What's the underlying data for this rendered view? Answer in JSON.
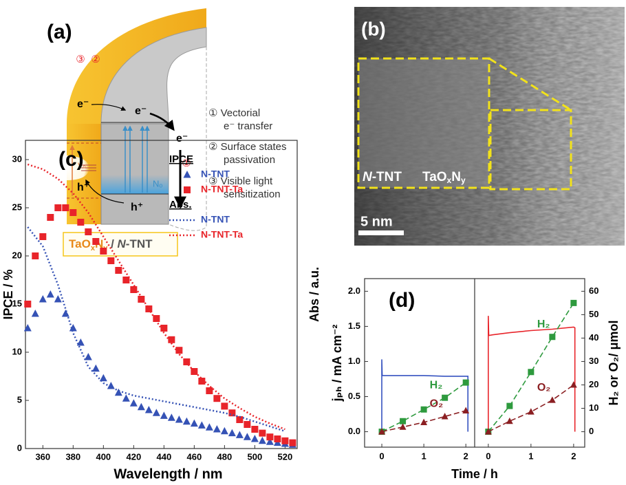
{
  "panel_a": {
    "label": "(a)",
    "circled_numbers": [
      "③",
      "②",
      "①"
    ],
    "electrons": [
      "e⁻",
      "e⁻",
      "e⁻"
    ],
    "holes": [
      "h⁺",
      "h⁺"
    ],
    "vacancy": "Vₒ",
    "nitrogen": "Nₒ",
    "notes": [
      "① Vectorial",
      "e⁻ transfer",
      "② Surface states",
      "passivation",
      "③ Visible light",
      "sensitization"
    ],
    "material_label": [
      "TaO",
      "x",
      "N",
      "y",
      " / ",
      "N",
      "-TNT"
    ]
  },
  "panel_b": {
    "label": "(b)",
    "core_label": [
      "N",
      "-TNT"
    ],
    "shell_label": [
      "TaO",
      "x",
      "N",
      "y"
    ],
    "scale_bar": "5 nm"
  },
  "chart_data": [
    {
      "type": "scatter",
      "title": "(c)",
      "xlabel": "Wavelength / nm",
      "ylabel": "IPCE / %",
      "y2label": "Abs / a.u.",
      "xlim": [
        348.5,
        528
      ],
      "xticks": [
        360,
        380,
        400,
        420,
        440,
        460,
        480,
        500,
        520
      ],
      "ylim": [
        0,
        32
      ],
      "yticks": [
        0,
        5,
        10,
        15,
        20,
        25,
        30
      ],
      "y2lim": [
        0,
        32
      ],
      "legend": "upper right",
      "legend_groups": [
        "IPCE",
        "Abs."
      ],
      "series": [
        {
          "name": "N-TNT",
          "color": "#3552b5",
          "marker": "triangle",
          "group": 0,
          "x": [
            350,
            355,
            360,
            365,
            370,
            375,
            380,
            385,
            390,
            395,
            400,
            405,
            410,
            415,
            420,
            425,
            430,
            435,
            440,
            445,
            450,
            455,
            460,
            465,
            470,
            475,
            480,
            485,
            490,
            495,
            500,
            505,
            510,
            515,
            520,
            525
          ],
          "values": [
            12.5,
            14,
            15.5,
            16,
            15.5,
            14,
            12.5,
            11,
            9.5,
            8.3,
            7.3,
            6.5,
            5.8,
            5.2,
            4.7,
            4.3,
            4,
            3.7,
            3.4,
            3.2,
            3,
            2.8,
            2.6,
            2.4,
            2.2,
            2,
            1.8,
            1.6,
            1.4,
            1.2,
            1,
            0.8,
            0.7,
            0.6,
            0.5,
            0.4
          ]
        },
        {
          "name": "N-TNT-Ta",
          "color": "#e8242a",
          "marker": "square",
          "group": 0,
          "x": [
            350,
            355,
            360,
            365,
            370,
            375,
            380,
            385,
            390,
            395,
            400,
            405,
            410,
            415,
            420,
            425,
            430,
            435,
            440,
            445,
            450,
            455,
            460,
            465,
            470,
            475,
            480,
            485,
            490,
            495,
            500,
            505,
            510,
            515,
            520,
            525
          ],
          "values": [
            15,
            20,
            22,
            24,
            25,
            25,
            24.5,
            23.5,
            22.5,
            21.5,
            20.5,
            19.5,
            18.5,
            17.5,
            16.5,
            15.5,
            14.5,
            13.5,
            12.5,
            11.3,
            10.2,
            9,
            8,
            7,
            6,
            5.2,
            4.4,
            3.7,
            3,
            2.5,
            2,
            1.6,
            1.2,
            1,
            0.8,
            0.6
          ]
        },
        {
          "name": "N-TNT",
          "color": "#3552b5",
          "line": "dotted",
          "axis": "y2",
          "group": 1,
          "x": [
            350,
            360,
            370,
            380,
            390,
            400,
            410,
            420,
            430,
            440,
            450,
            460,
            470,
            480,
            490,
            500,
            510,
            520
          ],
          "values": [
            23,
            21,
            17,
            12,
            8.5,
            6.8,
            6,
            5.5,
            5.2,
            4.9,
            4.6,
            4.3,
            4,
            3.7,
            3.3,
            2.8,
            2.3,
            1.8
          ]
        },
        {
          "name": "N-TNT-Ta",
          "color": "#e8242a",
          "line": "dotted",
          "axis": "y2",
          "group": 1,
          "x": [
            350,
            360,
            370,
            380,
            390,
            400,
            410,
            420,
            430,
            440,
            450,
            460,
            470,
            480,
            490,
            500,
            510,
            520
          ],
          "values": [
            29.5,
            29,
            28,
            26.5,
            24.5,
            22,
            19.5,
            17,
            14.5,
            12,
            9.8,
            8,
            6.5,
            5.2,
            4.2,
            3.3,
            2.6,
            2
          ]
        }
      ]
    },
    {
      "type": "line",
      "title": "(d)",
      "xlabel": "Time / h",
      "ylabel": "jₚₕ / mA cm⁻²",
      "y2label": "H₂ or O₂/ μmol",
      "ylim": [
        -0.22,
        2.18
      ],
      "yticks": [
        {
          "value": 0,
          "label": "0.0"
        },
        0.5,
        {
          "value": 1,
          "label": "1.0"
        },
        1.5,
        {
          "value": 2,
          "label": "2.0"
        }
      ],
      "y2lim": [
        -6.6,
        65.4
      ],
      "y2ticks": [
        0,
        10,
        20,
        30,
        40,
        50,
        60
      ],
      "panels": [
        {
          "xlim": [
            -0.41,
            2.21
          ],
          "xticks": [
            0,
            1,
            2
          ],
          "series": [
            {
              "color": "#3552c0",
              "line": "solid",
              "x": [
                0,
                0,
                0.01,
                0.1,
                0.5,
                1,
                1.5,
                2,
                2.05,
                2.05
              ],
              "values": [
                0,
                1.03,
                0.8,
                0.8,
                0.8,
                0.8,
                0.79,
                0.79,
                0.79,
                0
              ]
            },
            {
              "name": "H₂",
              "color": "#2e9a3e",
              "marker": "square",
              "line": "dashed",
              "axis": "y2",
              "x": [
                0,
                0.5,
                1,
                1.5,
                2
              ],
              "values": [
                0,
                4.5,
                9.5,
                14.5,
                21
              ]
            },
            {
              "name": "O₂",
              "color": "#8b1f22",
              "marker": "triangle",
              "line": "dashed",
              "axis": "y2",
              "x": [
                0,
                0.5,
                1,
                1.5,
                2
              ],
              "values": [
                0,
                2,
                4,
                6.5,
                9
              ]
            }
          ]
        },
        {
          "xlim": [
            -0.32,
            2.26
          ],
          "xticks": [
            0,
            1,
            2
          ],
          "series": [
            {
              "color": "#e8242a",
              "line": "solid",
              "x": [
                0,
                0,
                0.01,
                0.1,
                0.5,
                1,
                1.5,
                2,
                2.03,
                2.03
              ],
              "values": [
                0,
                1.65,
                1.37,
                1.38,
                1.41,
                1.44,
                1.46,
                1.49,
                1.48,
                0
              ]
            },
            {
              "name": "H₂",
              "color": "#2e9a3e",
              "marker": "square",
              "line": "dashed",
              "axis": "y2",
              "x": [
                0,
                0.5,
                1,
                1.5,
                2
              ],
              "values": [
                0,
                11,
                25.5,
                40.5,
                55
              ]
            },
            {
              "name": "O₂",
              "color": "#8b1f22",
              "marker": "triangle",
              "line": "dashed",
              "axis": "y2",
              "x": [
                0,
                0.5,
                1,
                1.5,
                2
              ],
              "values": [
                0,
                4.5,
                8.5,
                13.5,
                20
              ]
            }
          ]
        }
      ]
    }
  ]
}
